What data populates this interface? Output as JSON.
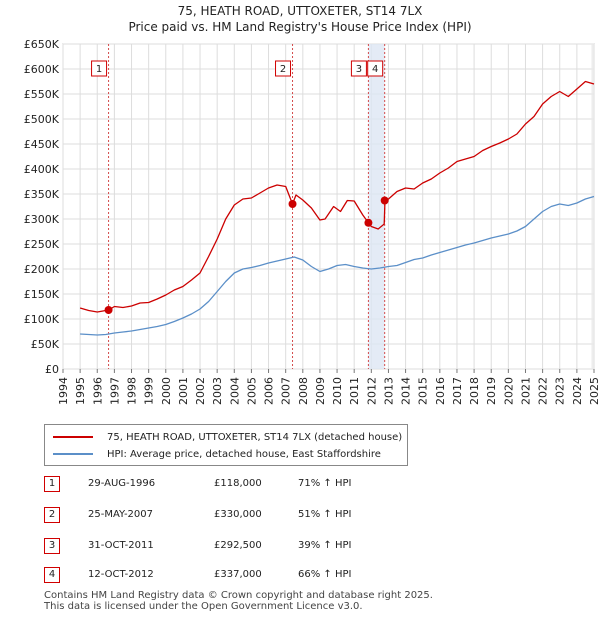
{
  "header": {
    "title": "75, HEATH ROAD, UTTOXETER, ST14 7LX",
    "subtitle": "Price paid vs. HM Land Registry's House Price Index (HPI)"
  },
  "colors": {
    "property_line": "#cc0000",
    "hpi_line": "#5b8fc8",
    "marker_line": "#d44b4b",
    "grid": "#dddddd"
  },
  "chart_data": {
    "type": "line",
    "title": "75, HEATH ROAD, UTTOXETER, ST14 7LX",
    "subtitle": "Price paid vs. HM Land Registry's House Price Index (HPI)",
    "xlabel": "",
    "ylabel": "",
    "xlim": [
      1994,
      2025
    ],
    "ylim": [
      0,
      650000
    ],
    "grid": true,
    "y_ticks": [
      0,
      50000,
      100000,
      150000,
      200000,
      250000,
      300000,
      350000,
      400000,
      450000,
      500000,
      550000,
      600000,
      650000
    ],
    "y_tick_labels": [
      "£0",
      "£50K",
      "£100K",
      "£150K",
      "£200K",
      "£250K",
      "£300K",
      "£350K",
      "£400K",
      "£450K",
      "£500K",
      "£550K",
      "£600K",
      "£650K"
    ],
    "x_ticks": [
      1994,
      1995,
      1996,
      1997,
      1998,
      1999,
      2000,
      2001,
      2002,
      2003,
      2004,
      2005,
      2006,
      2007,
      2008,
      2009,
      2010,
      2011,
      2012,
      2013,
      2014,
      2015,
      2016,
      2017,
      2018,
      2019,
      2020,
      2021,
      2022,
      2023,
      2024,
      2025
    ],
    "series": [
      {
        "name": "75, HEATH ROAD, UTTOXETER, ST14 7LX (detached house)",
        "color": "#cc0000",
        "x": [
          1995.0,
          1995.5,
          1996.0,
          1996.66,
          1997.0,
          1997.5,
          1998.0,
          1998.5,
          1999.0,
          1999.5,
          2000.0,
          2000.5,
          2001.0,
          2001.5,
          2002.0,
          2002.5,
          2003.0,
          2003.5,
          2004.0,
          2004.5,
          2005.0,
          2005.5,
          2006.0,
          2006.5,
          2007.0,
          2007.4,
          2007.6,
          2008.0,
          2008.5,
          2009.0,
          2009.3,
          2009.8,
          2010.2,
          2010.6,
          2011.0,
          2011.5,
          2011.83,
          2012.0,
          2012.4,
          2012.75,
          2012.8,
          2013.0,
          2013.5,
          2014.0,
          2014.5,
          2015.0,
          2015.5,
          2016.0,
          2016.5,
          2017.0,
          2017.5,
          2018.0,
          2018.5,
          2019.0,
          2019.5,
          2020.0,
          2020.5,
          2021.0,
          2021.5,
          2022.0,
          2022.5,
          2023.0,
          2023.5,
          2024.0,
          2024.5,
          2025.0
        ],
        "values": [
          122000,
          117000,
          114000,
          118000,
          125000,
          123000,
          126000,
          132000,
          133000,
          140000,
          148000,
          158000,
          165000,
          178000,
          192000,
          225000,
          260000,
          300000,
          328000,
          340000,
          342000,
          352000,
          362000,
          368000,
          365000,
          330000,
          348000,
          338000,
          322000,
          298000,
          300000,
          325000,
          315000,
          337000,
          336000,
          308000,
          292500,
          285000,
          280000,
          290000,
          337000,
          340000,
          355000,
          362000,
          360000,
          372000,
          380000,
          392000,
          402000,
          415000,
          420000,
          425000,
          437000,
          445000,
          452000,
          460000,
          470000,
          490000,
          505000,
          530000,
          545000,
          555000,
          545000,
          560000,
          575000,
          570000
        ]
      },
      {
        "name": "HPI: Average price, detached house, East Staffordshire",
        "color": "#5b8fc8",
        "x": [
          1995.0,
          1995.5,
          1996.0,
          1996.5,
          1997.0,
          1997.5,
          1998.0,
          1998.5,
          1999.0,
          1999.5,
          2000.0,
          2000.5,
          2001.0,
          2001.5,
          2002.0,
          2002.5,
          2003.0,
          2003.5,
          2004.0,
          2004.5,
          2005.0,
          2005.5,
          2006.0,
          2006.5,
          2007.0,
          2007.5,
          2008.0,
          2008.5,
          2009.0,
          2009.5,
          2010.0,
          2010.5,
          2011.0,
          2011.5,
          2012.0,
          2012.5,
          2013.0,
          2013.5,
          2014.0,
          2014.5,
          2015.0,
          2015.5,
          2016.0,
          2016.5,
          2017.0,
          2017.5,
          2018.0,
          2018.5,
          2019.0,
          2019.5,
          2020.0,
          2020.5,
          2021.0,
          2021.5,
          2022.0,
          2022.5,
          2023.0,
          2023.5,
          2024.0,
          2024.5,
          2025.0
        ],
        "values": [
          70000,
          69000,
          68000,
          69000,
          72000,
          74000,
          76000,
          79000,
          82000,
          85000,
          89000,
          95000,
          102000,
          110000,
          120000,
          135000,
          155000,
          175000,
          192000,
          200000,
          203000,
          207000,
          212000,
          216000,
          220000,
          224000,
          218000,
          205000,
          195000,
          200000,
          207000,
          209000,
          205000,
          202000,
          200000,
          202000,
          205000,
          207000,
          213000,
          219000,
          222000,
          228000,
          233000,
          238000,
          243000,
          248000,
          252000,
          257000,
          262000,
          266000,
          270000,
          276000,
          285000,
          300000,
          315000,
          325000,
          330000,
          327000,
          332000,
          340000,
          345000
        ]
      }
    ],
    "sales": [
      {
        "n": "1",
        "date": "29-AUG-1996",
        "x": 1996.66,
        "price": 118000,
        "price_label": "£118,000",
        "hpi": "71% ↑ HPI"
      },
      {
        "n": "2",
        "date": "25-MAY-2007",
        "x": 2007.4,
        "price": 330000,
        "price_label": "£330,000",
        "hpi": "51% ↑ HPI"
      },
      {
        "n": "3",
        "date": "31-OCT-2011",
        "x": 2011.83,
        "price": 292500,
        "price_label": "£292,500",
        "hpi": "39% ↑ HPI"
      },
      {
        "n": "4",
        "date": "12-OCT-2012",
        "x": 2012.78,
        "price": 337000,
        "price_label": "£337,000",
        "hpi": "66% ↑ HPI"
      }
    ]
  },
  "legend": {
    "property_label": "75, HEATH ROAD, UTTOXETER, ST14 7LX (detached house)",
    "hpi_label": "HPI: Average price, detached house, East Staffordshire"
  },
  "footer": {
    "line1": "Contains HM Land Registry data © Crown copyright and database right 2025.",
    "line2": "This data is licensed under the Open Government Licence v3.0."
  }
}
